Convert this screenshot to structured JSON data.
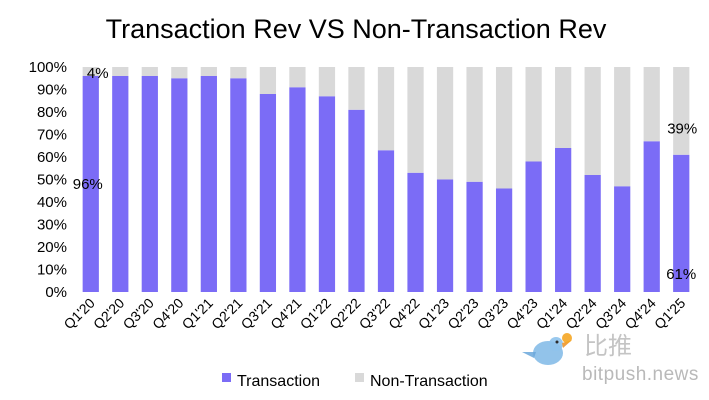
{
  "chart_data": {
    "type": "bar",
    "stacked": true,
    "title": "Transaction Rev VS Non-Transaction Rev",
    "categories": [
      "Q1'20",
      "Q2'20",
      "Q3'20",
      "Q4'20",
      "Q1'21",
      "Q2'21",
      "Q3'21",
      "Q4'21",
      "Q1'22",
      "Q2'22",
      "Q3'22",
      "Q4'22",
      "Q1'23",
      "Q2'23",
      "Q3'23",
      "Q4'23",
      "Q1'24",
      "Q2'24",
      "Q3'24",
      "Q4'24",
      "Q1'25"
    ],
    "series": [
      {
        "name": "Transaction",
        "color": "#7b6cf6",
        "values": [
          96,
          96,
          96,
          95,
          96,
          95,
          88,
          91,
          87,
          81,
          63,
          53,
          50,
          49,
          46,
          58,
          64,
          52,
          47,
          67,
          61
        ]
      },
      {
        "name": "Non-Transaction",
        "color": "#d9d9d9",
        "values": [
          4,
          4,
          4,
          5,
          4,
          5,
          12,
          9,
          13,
          19,
          37,
          47,
          50,
          51,
          54,
          42,
          36,
          48,
          53,
          33,
          39
        ]
      }
    ],
    "yticks": [
      "0%",
      "10%",
      "20%",
      "30%",
      "40%",
      "50%",
      "60%",
      "70%",
      "80%",
      "90%",
      "100%"
    ],
    "ylim": [
      0,
      100
    ],
    "annotations": [
      {
        "category": "Q1'20",
        "series": "Non-Transaction",
        "text": "4%"
      },
      {
        "category": "Q1'20",
        "series": "Transaction",
        "text": "96%"
      },
      {
        "category": "Q1'25",
        "series": "Non-Transaction",
        "text": "39%"
      },
      {
        "category": "Q1'25",
        "series": "Transaction",
        "text": "61%"
      }
    ],
    "legend_position": "bottom",
    "grid": false
  },
  "watermark": {
    "cn_text": "比推",
    "url_text": "bitpush.news",
    "icon": "bird-logo-icon"
  }
}
